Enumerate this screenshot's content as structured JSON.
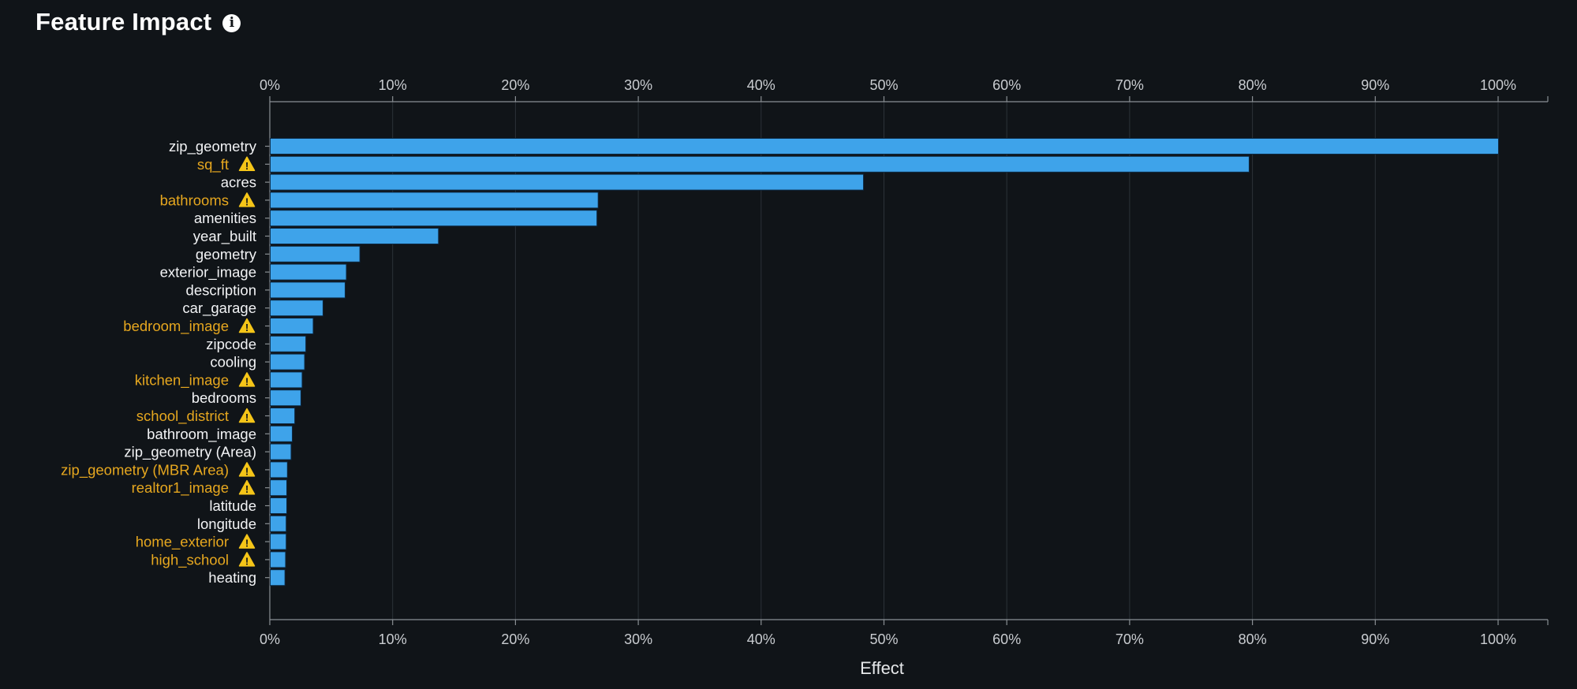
{
  "header": {
    "title": "Feature Impact",
    "info_icon": "info-icon"
  },
  "colors": {
    "background": "#101418",
    "bar": "#3ea3ea",
    "bar_edge": "#0d2a44",
    "label_normal": "#f2f3f5",
    "label_warning": "#e6a71f",
    "warning_icon": "#f5c518",
    "grid": "#2c3238",
    "axis": "#8a8f94"
  },
  "chart_data": {
    "type": "bar",
    "orientation": "horizontal",
    "xlabel": "Effect",
    "xlim": [
      0,
      100
    ],
    "x_ticks": [
      "0%",
      "10%",
      "20%",
      "30%",
      "40%",
      "50%",
      "60%",
      "70%",
      "80%",
      "90%",
      "100%"
    ],
    "x_tick_values": [
      0,
      10,
      20,
      30,
      40,
      50,
      60,
      70,
      80,
      90,
      100
    ],
    "x_axis_positions": [
      "top",
      "bottom"
    ],
    "grid": true,
    "categories": [
      "zip_geometry",
      "sq_ft",
      "acres",
      "bathrooms",
      "amenities",
      "year_built",
      "geometry",
      "exterior_image",
      "description",
      "car_garage",
      "bedroom_image",
      "zipcode",
      "cooling",
      "kitchen_image",
      "bedrooms",
      "school_district",
      "bathroom_image",
      "zip_geometry (Area)",
      "zip_geometry (MBR Area)",
      "realtor1_image",
      "latitude",
      "longitude",
      "home_exterior",
      "high_school",
      "heating"
    ],
    "values": [
      100,
      79.7,
      48.3,
      26.7,
      26.6,
      13.7,
      7.3,
      6.2,
      6.1,
      4.3,
      3.5,
      2.9,
      2.8,
      2.6,
      2.5,
      2.0,
      1.8,
      1.7,
      1.4,
      1.35,
      1.35,
      1.3,
      1.3,
      1.25,
      1.2
    ],
    "warnings": [
      false,
      true,
      false,
      true,
      false,
      false,
      false,
      false,
      false,
      false,
      true,
      false,
      false,
      true,
      false,
      true,
      false,
      false,
      true,
      true,
      false,
      false,
      true,
      true,
      false
    ]
  }
}
